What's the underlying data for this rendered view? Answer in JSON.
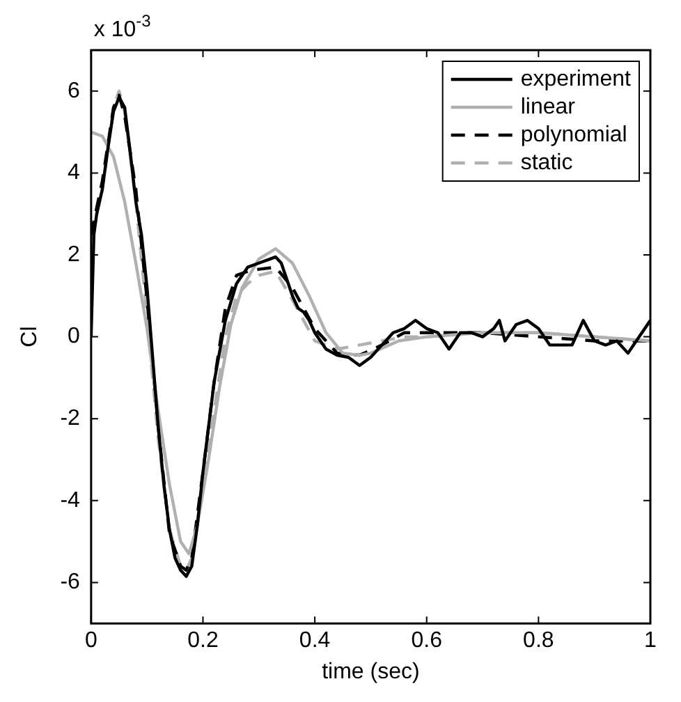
{
  "chart_data": {
    "type": "line",
    "xlabel": "time (sec)",
    "ylabel": "Cl",
    "annotations": [
      "x 10$^{-3}$"
    ],
    "xlim": [
      0,
      1
    ],
    "xticks": [
      0,
      0.2,
      0.4,
      0.6,
      0.8,
      1
    ],
    "ylim": [
      -7,
      7
    ],
    "yticks": [
      -6,
      -4,
      -2,
      0,
      2,
      4,
      6
    ],
    "grid": false,
    "legend": "top right",
    "marker": "none",
    "series": [
      {
        "name": "experiment",
        "color": "#000000",
        "line_style": "solid",
        "x": [
          0,
          0.005,
          0.01,
          0.02,
          0.03,
          0.04,
          0.05,
          0.06,
          0.07,
          0.08,
          0.09,
          0.1,
          0.11,
          0.12,
          0.13,
          0.14,
          0.15,
          0.16,
          0.17,
          0.18,
          0.19,
          0.2,
          0.21,
          0.22,
          0.24,
          0.26,
          0.28,
          0.3,
          0.32,
          0.33,
          0.34,
          0.35,
          0.36,
          0.37,
          0.38,
          0.39,
          0.4,
          0.42,
          0.44,
          0.46,
          0.48,
          0.5,
          0.52,
          0.54,
          0.56,
          0.58,
          0.6,
          0.62,
          0.64,
          0.66,
          0.68,
          0.7,
          0.72,
          0.73,
          0.74,
          0.76,
          0.78,
          0.8,
          0.82,
          0.84,
          0.86,
          0.88,
          0.9,
          0.92,
          0.94,
          0.96,
          0.98,
          1
        ],
        "values": [
          0,
          2.5,
          3.0,
          3.6,
          4.6,
          5.5,
          5.85,
          5.6,
          4.5,
          3.3,
          2.5,
          1.2,
          -0.5,
          -2.2,
          -3.6,
          -4.7,
          -5.4,
          -5.7,
          -5.85,
          -5.6,
          -4.6,
          -3.3,
          -2.2,
          -1.1,
          0.4,
          1.3,
          1.7,
          1.8,
          1.9,
          1.95,
          1.8,
          1.4,
          1.0,
          0.7,
          0.6,
          0.4,
          0.1,
          -0.3,
          -0.45,
          -0.5,
          -0.7,
          -0.5,
          -0.2,
          0.1,
          0.2,
          0.4,
          0.2,
          0.1,
          -0.3,
          0.1,
          0.1,
          0,
          0.2,
          0.4,
          -0.1,
          0.3,
          0.4,
          0.2,
          -0.2,
          -0.2,
          -0.2,
          0.4,
          -0.1,
          -0.2,
          -0.1,
          -0.4,
          0,
          0.4
        ]
      },
      {
        "name": "linear",
        "color": "#b0b0b0",
        "line_style": "solid",
        "x": [
          0,
          0.02,
          0.04,
          0.06,
          0.08,
          0.1,
          0.12,
          0.14,
          0.16,
          0.175,
          0.19,
          0.21,
          0.23,
          0.25,
          0.27,
          0.3,
          0.33,
          0.36,
          0.39,
          0.42,
          0.45,
          0.48,
          0.5,
          0.55,
          0.6,
          0.7,
          0.8,
          0.9,
          1
        ],
        "values": [
          5.0,
          4.9,
          4.4,
          3.3,
          1.8,
          0.2,
          -1.8,
          -3.6,
          -5.0,
          -5.3,
          -4.6,
          -3.0,
          -1.2,
          0.3,
          1.2,
          1.9,
          2.15,
          1.8,
          1.0,
          0.1,
          -0.4,
          -0.45,
          -0.4,
          -0.1,
          0,
          0.1,
          0.1,
          0,
          -0.1
        ]
      },
      {
        "name": "polynomial",
        "color": "#000000",
        "line_style": "dashed",
        "x": [
          0,
          0.02,
          0.04,
          0.05,
          0.06,
          0.08,
          0.1,
          0.12,
          0.14,
          0.16,
          0.17,
          0.18,
          0.2,
          0.22,
          0.24,
          0.26,
          0.28,
          0.3,
          0.33,
          0.36,
          0.4,
          0.44,
          0.48,
          0.52,
          0.56,
          0.6,
          0.7,
          0.8,
          0.9,
          1
        ],
        "values": [
          2.5,
          3.8,
          5.6,
          5.9,
          5.4,
          3.6,
          0.9,
          -2.2,
          -4.8,
          -5.6,
          -5.7,
          -5.4,
          -3.3,
          -1.1,
          0.7,
          1.5,
          1.6,
          1.65,
          1.7,
          1.2,
          0.2,
          -0.4,
          -0.45,
          -0.2,
          0.1,
          0.1,
          0.1,
          0,
          -0.1,
          -0.1
        ]
      },
      {
        "name": "static",
        "color": "#b0b0b0",
        "line_style": "dashed",
        "x": [
          0,
          0.02,
          0.04,
          0.05,
          0.06,
          0.08,
          0.1,
          0.12,
          0.14,
          0.16,
          0.17,
          0.18,
          0.2,
          0.22,
          0.24,
          0.26,
          0.28,
          0.3,
          0.33,
          0.36,
          0.4,
          0.44,
          0.48,
          0.52,
          0.56,
          0.6,
          0.7,
          0.8,
          0.9,
          1
        ],
        "values": [
          2.4,
          3.6,
          5.6,
          6.0,
          5.5,
          3.3,
          0.5,
          -2.5,
          -4.7,
          -5.6,
          -5.7,
          -5.4,
          -3.6,
          -1.8,
          0,
          1.0,
          1.3,
          1.5,
          1.6,
          0.9,
          -0.1,
          -0.3,
          -0.2,
          -0.1,
          0,
          0,
          0.1,
          0.1,
          0,
          -0.1
        ]
      }
    ]
  }
}
